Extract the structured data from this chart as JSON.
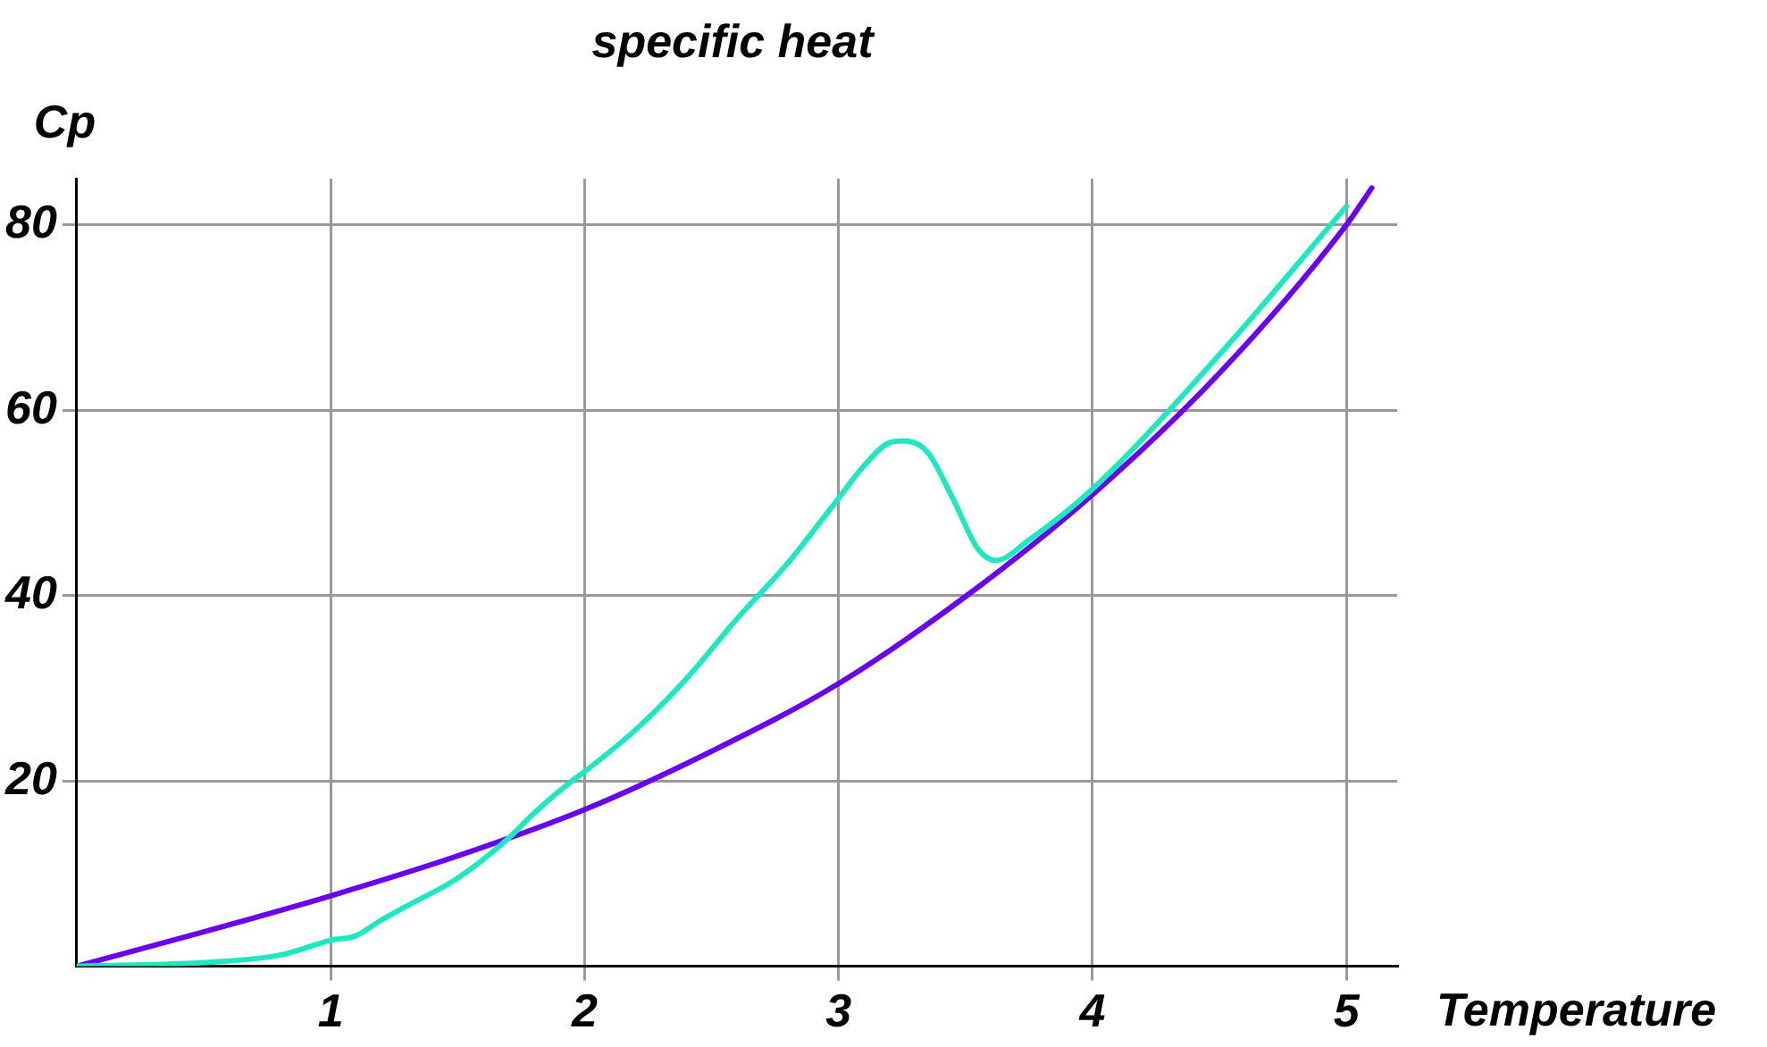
{
  "chart_data": {
    "type": "line",
    "title": "specific heat",
    "xlabel": "Temperature",
    "ylabel": "Cp",
    "xlim": [
      0,
      5.2
    ],
    "ylim": [
      0,
      85
    ],
    "xticks": [
      1,
      2,
      3,
      4,
      5
    ],
    "yticks": [
      20,
      40,
      60,
      80
    ],
    "grid": true,
    "legend": false,
    "marker": "none",
    "line_style": "solid",
    "series": [
      {
        "color": "#1ee8c0",
        "x": [
          0,
          0.5,
          0.8,
          1.0,
          1.1,
          1.2,
          1.3,
          1.5,
          1.7,
          1.8,
          1.95,
          2.0,
          2.2,
          2.4,
          2.6,
          2.8,
          3.0,
          3.1,
          3.2,
          3.26,
          3.35,
          3.45,
          3.55,
          3.62,
          3.75,
          4.0,
          4.5,
          5.0
        ],
        "values": [
          0,
          0.4,
          1.2,
          2.8,
          3.3,
          5,
          6.5,
          9.5,
          13.8,
          16.5,
          20,
          21,
          25.5,
          31,
          37.5,
          43.5,
          50.5,
          54,
          56.5,
          56.7,
          55.5,
          50.5,
          45,
          43.8,
          46,
          51.5,
          66,
          82
        ]
      },
      {
        "color": "#6a00f0",
        "x": [
          0,
          0.5,
          1,
          1.5,
          2,
          2.5,
          3,
          3.5,
          4,
          4.5,
          5,
          5.1
        ],
        "values": [
          0,
          3.7,
          7.6,
          11.9,
          16.9,
          23.2,
          30.5,
          39.9,
          50.9,
          64,
          80,
          84
        ]
      }
    ]
  }
}
